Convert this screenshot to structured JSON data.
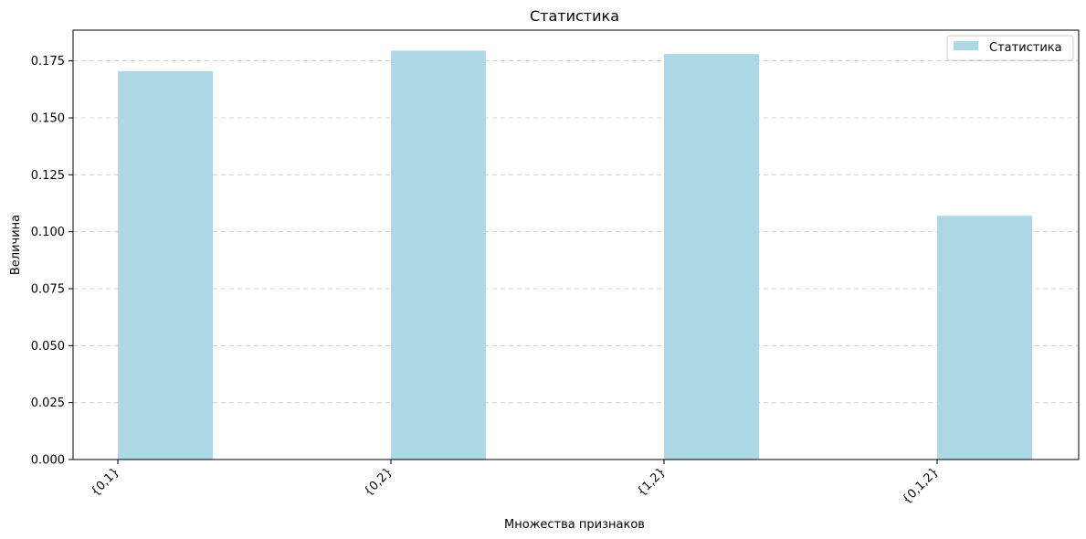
{
  "chart_data": {
    "type": "bar",
    "title": "Статистика",
    "xlabel": "Множества признаков",
    "ylabel": "Величина",
    "categories": [
      "{0,1}",
      "{0,2}",
      "{1,2}",
      "{0,1,2}"
    ],
    "series": [
      {
        "name": "Статистика",
        "values": [
          0.1705,
          0.1795,
          0.178,
          0.107
        ],
        "color": "#add8e6"
      }
    ],
    "ylim": [
      0,
      0.1885
    ],
    "yticks": [
      "0.000",
      "0.025",
      "0.050",
      "0.075",
      "0.100",
      "0.125",
      "0.150",
      "0.175"
    ],
    "ytick_values": [
      0,
      0.025,
      0.05,
      0.075,
      0.1,
      0.125,
      0.15,
      0.175
    ],
    "grid": "y-dashed",
    "legend_position": "top-right"
  }
}
